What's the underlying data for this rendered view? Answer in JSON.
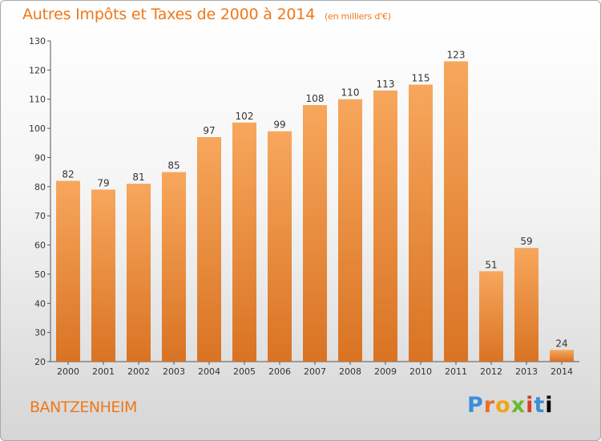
{
  "header": {
    "title": "Autres Impôts et Taxes de 2000 à 2014",
    "unit": "(en milliers d'€)"
  },
  "footer": {
    "commune": "BANTZENHEIM",
    "logo_letters": [
      "P",
      "r",
      "o",
      "x",
      "i",
      "t",
      "i"
    ]
  },
  "colors": {
    "accent": "#f07818",
    "bar_light": "#f7a75c",
    "bar_dark": "#d97323"
  },
  "chart_data": {
    "type": "bar",
    "title": "Autres Impôts et Taxes de 2000 à 2014",
    "subtitle": "(en milliers d'€)",
    "xlabel": "",
    "ylabel": "",
    "categories": [
      "2000",
      "2001",
      "2002",
      "2003",
      "2004",
      "2005",
      "2006",
      "2007",
      "2008",
      "2009",
      "2010",
      "2011",
      "2012",
      "2013",
      "2014"
    ],
    "values": [
      82,
      79,
      81,
      85,
      97,
      102,
      99,
      108,
      110,
      113,
      115,
      123,
      51,
      59,
      24
    ],
    "ylim": [
      20,
      130
    ],
    "yticks": [
      20,
      30,
      40,
      50,
      60,
      70,
      80,
      90,
      100,
      110,
      120,
      130
    ],
    "grid": false,
    "legend": "none"
  }
}
